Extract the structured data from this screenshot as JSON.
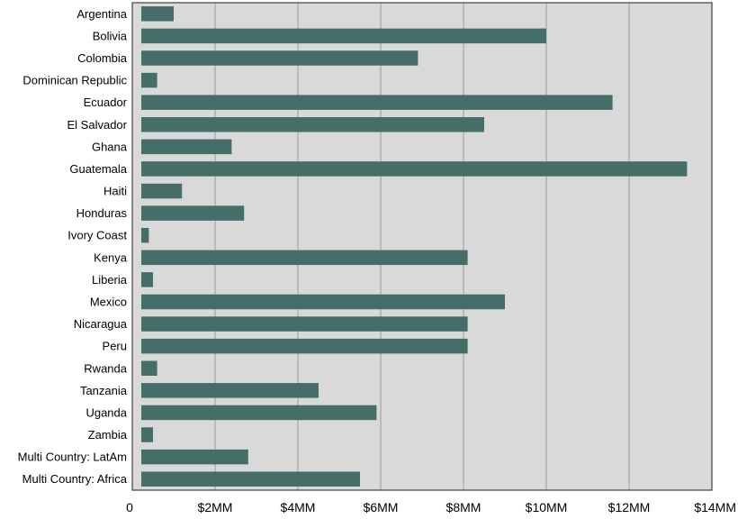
{
  "chart_data": {
    "type": "bar",
    "orientation": "horizontal",
    "categories": [
      "Argentina",
      "Bolivia",
      "Colombia",
      "Dominican Republic",
      "Ecuador",
      "El Salvador",
      "Ghana",
      "Guatemala",
      "Haiti",
      "Honduras",
      "Ivory Coast",
      "Kenya",
      "Liberia",
      "Mexico",
      "Nicaragua",
      "Peru",
      "Rwanda",
      "Tanzania",
      "Uganda",
      "Zambia",
      "Multi Country: LatAm",
      "Multi Country: Africa"
    ],
    "values": [
      1.0,
      10.0,
      6.9,
      0.6,
      11.6,
      8.5,
      2.4,
      13.4,
      1.2,
      2.7,
      0.4,
      8.1,
      0.5,
      9.0,
      8.1,
      8.1,
      0.6,
      4.5,
      5.9,
      0.5,
      2.8,
      5.5
    ],
    "value_unit": "$MM",
    "xlim": [
      0,
      14
    ],
    "x_ticks": [
      0,
      2,
      4,
      6,
      8,
      10,
      12,
      14
    ],
    "x_tick_labels": [
      "0",
      "$2MM",
      "$4MM",
      "$6MM",
      "$8MM",
      "$10MM",
      "$12MM",
      "$14MM"
    ],
    "title": "",
    "xlabel": "",
    "ylabel": "",
    "grid": "vertical",
    "legend": "none",
    "colors": {
      "bar": "#456e69",
      "plot_background": "#d9d9d9",
      "gridline": "#a6a6a6",
      "frame": "#404040"
    }
  }
}
